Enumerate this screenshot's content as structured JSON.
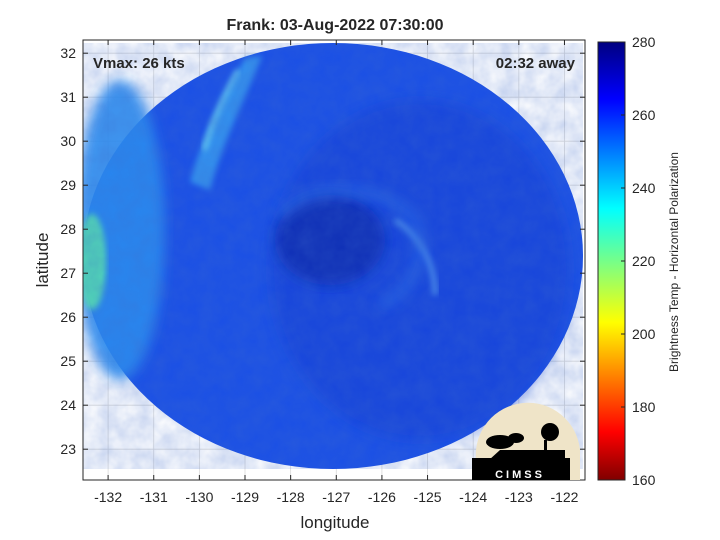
{
  "chart_data": {
    "type": "heatmap",
    "title": "Frank: 03-Aug-2022 07:30:00",
    "xlabel": "longitude",
    "ylabel": "latitude",
    "xlim": [
      -132.55,
      -121.55
    ],
    "ylim": [
      22.3,
      32.3
    ],
    "xticks": [
      -132,
      -131,
      -130,
      -129,
      -128,
      -127,
      -126,
      -125,
      -124,
      -123,
      -122
    ],
    "yticks": [
      23,
      24,
      25,
      26,
      27,
      28,
      29,
      30,
      31,
      32
    ],
    "grid": true,
    "annotations": {
      "left": "Vmax: 26 kts",
      "right": "02:32 away"
    },
    "colorbar": {
      "label": "Brightness Temp - Horizontal Polarization",
      "min": 160,
      "max": 280,
      "ticks": [
        160,
        180,
        200,
        220,
        240,
        260,
        280
      ],
      "colormap": "jet"
    },
    "center": {
      "lon": -127.4,
      "lat": 27.6
    },
    "values_description_points": [
      {
        "lon": -127.4,
        "lat": 27.6,
        "tb": 268
      },
      {
        "lon": -126.5,
        "lat": 25.0,
        "tb": 262
      },
      {
        "lon": -129.6,
        "lat": 30.5,
        "tb": 245
      },
      {
        "lon": -124.9,
        "lat": 27.2,
        "tb": 250
      },
      {
        "lon": -132.3,
        "lat": 27.3,
        "tb": 228
      },
      {
        "lon": -131.5,
        "lat": 28.5,
        "tb": 250
      }
    ]
  },
  "logo": {
    "text": "CIMSS"
  },
  "colors": {
    "background": "#ffffff",
    "text": "#262626",
    "grid": "#d9d9d9"
  }
}
